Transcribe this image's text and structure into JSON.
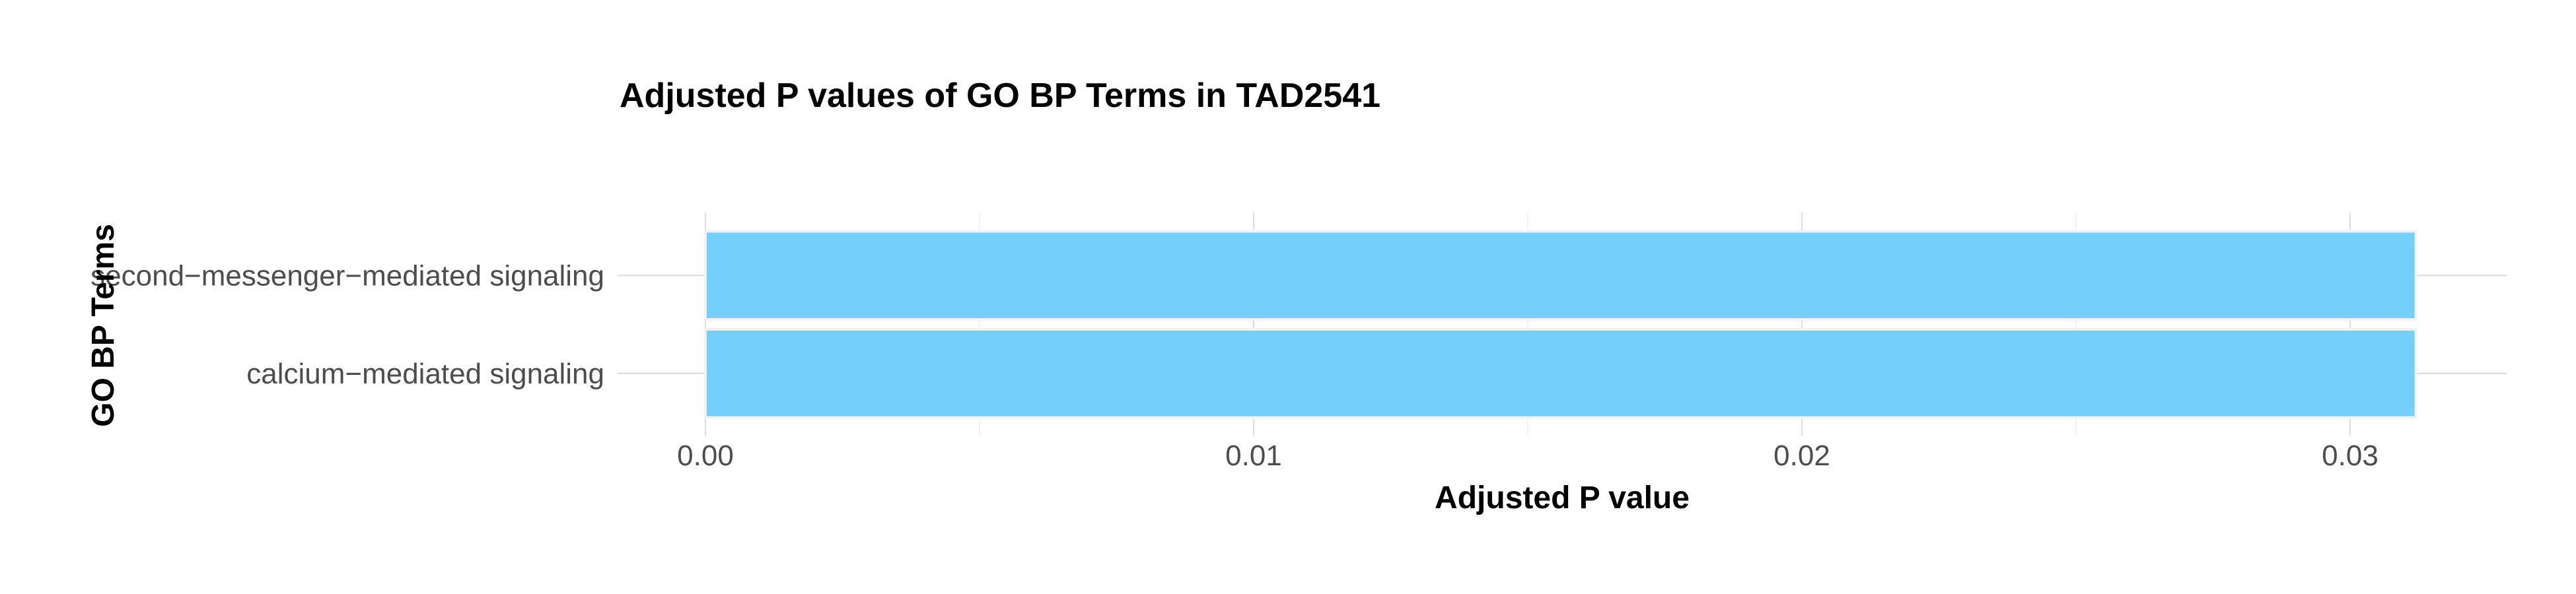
{
  "chart_data": {
    "type": "bar",
    "orientation": "horizontal",
    "title": "Adjusted P values of GO BP Terms in TAD2541",
    "xlabel": "Adjusted P value",
    "ylabel": "GO BP Terms",
    "categories": [
      "second−messenger−mediated signaling",
      "calcium−mediated signaling"
    ],
    "values": [
      0.0312,
      0.0312
    ],
    "xlim": [
      0,
      0.0328
    ],
    "x_ticks": [
      0,
      0.01,
      0.02,
      0.03
    ],
    "x_tick_labels": [
      "0.00",
      "0.01",
      "0.02",
      "0.03"
    ],
    "grid": true,
    "legend": "none",
    "bar_color": "#75CFFB"
  }
}
